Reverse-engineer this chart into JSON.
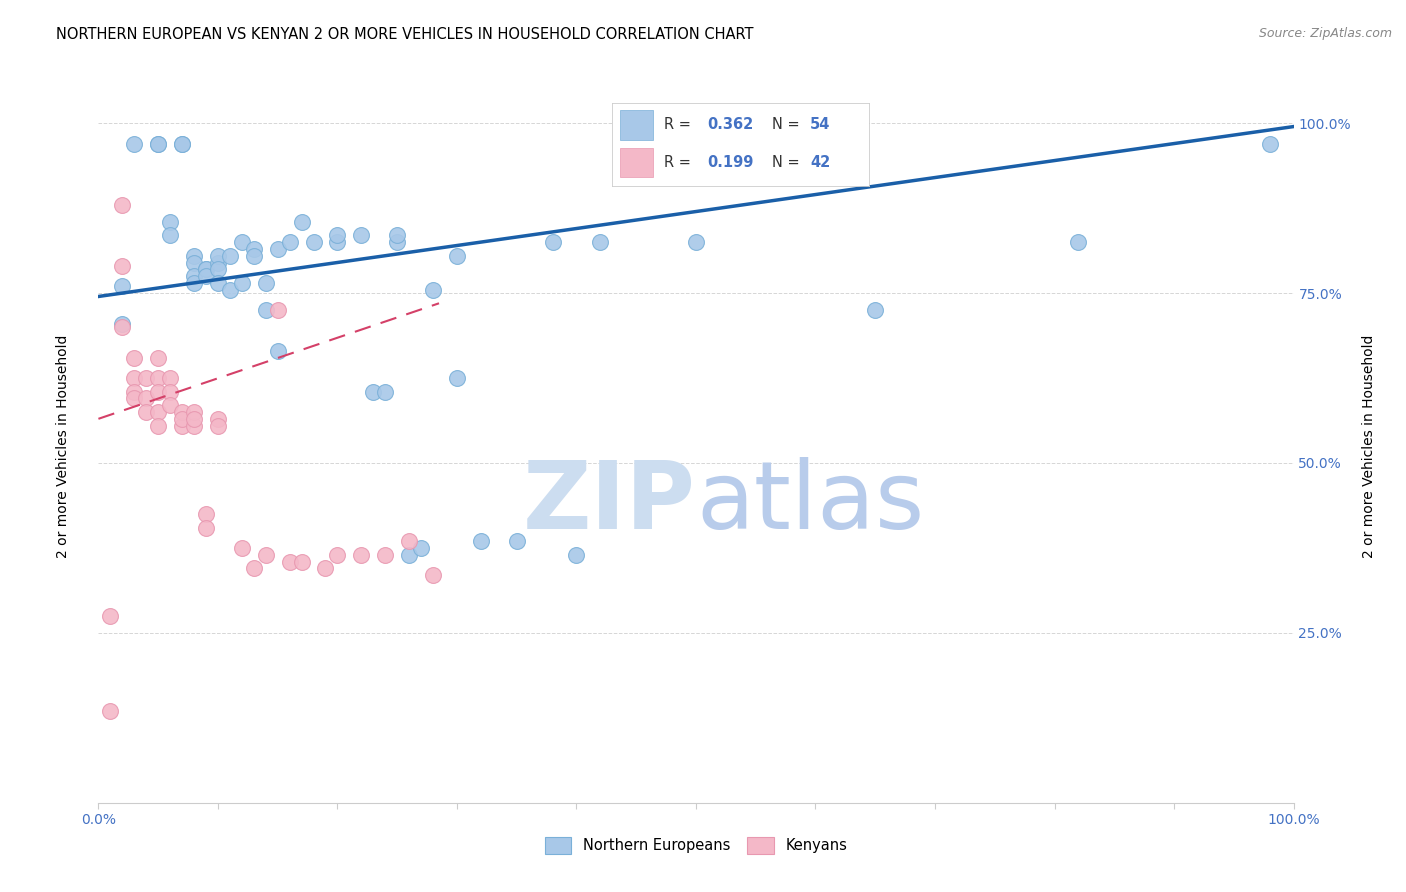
{
  "title": "NORTHERN EUROPEAN VS KENYAN 2 OR MORE VEHICLES IN HOUSEHOLD CORRELATION CHART",
  "source": "Source: ZipAtlas.com",
  "ylabel": "2 or more Vehicles in Household",
  "ytick_labels": [
    "100.0%",
    "75.0%",
    "50.0%",
    "25.0%"
  ],
  "ytick_values": [
    1.0,
    0.75,
    0.5,
    0.25
  ],
  "watermark_zip": "ZIP",
  "watermark_atlas": "atlas",
  "legend_blue_r": "0.362",
  "legend_blue_n": "54",
  "legend_pink_r": "0.199",
  "legend_pink_n": "42",
  "legend_label_blue": "Northern Europeans",
  "legend_label_pink": "Kenyans",
  "blue_scatter_x": [
    0.02,
    0.02,
    0.03,
    0.05,
    0.05,
    0.06,
    0.06,
    0.07,
    0.07,
    0.08,
    0.08,
    0.08,
    0.08,
    0.09,
    0.09,
    0.09,
    0.1,
    0.1,
    0.1,
    0.1,
    0.11,
    0.11,
    0.12,
    0.12,
    0.13,
    0.13,
    0.14,
    0.14,
    0.15,
    0.15,
    0.16,
    0.17,
    0.18,
    0.2,
    0.22,
    0.23,
    0.24,
    0.25,
    0.26,
    0.27,
    0.28,
    0.3,
    0.3,
    0.32,
    0.35,
    0.38,
    0.4,
    0.42,
    0.5,
    0.65,
    0.82,
    0.98,
    0.2,
    0.25
  ],
  "blue_scatter_y": [
    0.705,
    0.76,
    0.97,
    0.97,
    0.97,
    0.855,
    0.835,
    0.97,
    0.97,
    0.805,
    0.795,
    0.775,
    0.765,
    0.785,
    0.785,
    0.775,
    0.795,
    0.805,
    0.785,
    0.765,
    0.805,
    0.755,
    0.825,
    0.765,
    0.815,
    0.805,
    0.765,
    0.725,
    0.815,
    0.665,
    0.825,
    0.855,
    0.825,
    0.825,
    0.835,
    0.605,
    0.605,
    0.825,
    0.365,
    0.375,
    0.755,
    0.805,
    0.625,
    0.385,
    0.385,
    0.825,
    0.365,
    0.825,
    0.825,
    0.725,
    0.825,
    0.97,
    0.835,
    0.835
  ],
  "pink_scatter_x": [
    0.01,
    0.01,
    0.02,
    0.02,
    0.02,
    0.03,
    0.03,
    0.03,
    0.03,
    0.04,
    0.04,
    0.04,
    0.05,
    0.05,
    0.05,
    0.05,
    0.05,
    0.06,
    0.06,
    0.06,
    0.07,
    0.07,
    0.07,
    0.08,
    0.08,
    0.08,
    0.09,
    0.09,
    0.1,
    0.1,
    0.12,
    0.13,
    0.14,
    0.15,
    0.16,
    0.17,
    0.19,
    0.2,
    0.22,
    0.24,
    0.26,
    0.28
  ],
  "pink_scatter_y": [
    0.135,
    0.275,
    0.88,
    0.79,
    0.7,
    0.655,
    0.625,
    0.605,
    0.595,
    0.625,
    0.595,
    0.575,
    0.655,
    0.625,
    0.605,
    0.575,
    0.555,
    0.625,
    0.605,
    0.585,
    0.555,
    0.575,
    0.565,
    0.555,
    0.575,
    0.565,
    0.425,
    0.405,
    0.565,
    0.555,
    0.375,
    0.345,
    0.365,
    0.725,
    0.355,
    0.355,
    0.345,
    0.365,
    0.365,
    0.365,
    0.385,
    0.335
  ],
  "blue_line_x": [
    0.0,
    1.0
  ],
  "blue_line_y": [
    0.745,
    0.995
  ],
  "pink_line_x": [
    0.0,
    0.285
  ],
  "pink_line_y": [
    0.565,
    0.735
  ],
  "xlim": [
    0.0,
    1.0
  ],
  "ylim": [
    0.0,
    1.05
  ],
  "bg_color": "#ffffff",
  "blue_color": "#a8c8e8",
  "pink_color": "#f4b8c8",
  "blue_scatter_edge": "#7ab0d8",
  "pink_scatter_edge": "#e898b0",
  "blue_line_color": "#1a5fa8",
  "pink_line_color": "#d44068",
  "tick_color": "#4472c4",
  "watermark_zip_color": "#ccddf0",
  "watermark_atlas_color": "#b8cceb",
  "title_fontsize": 10.5,
  "source_fontsize": 9,
  "scatter_size": 130
}
